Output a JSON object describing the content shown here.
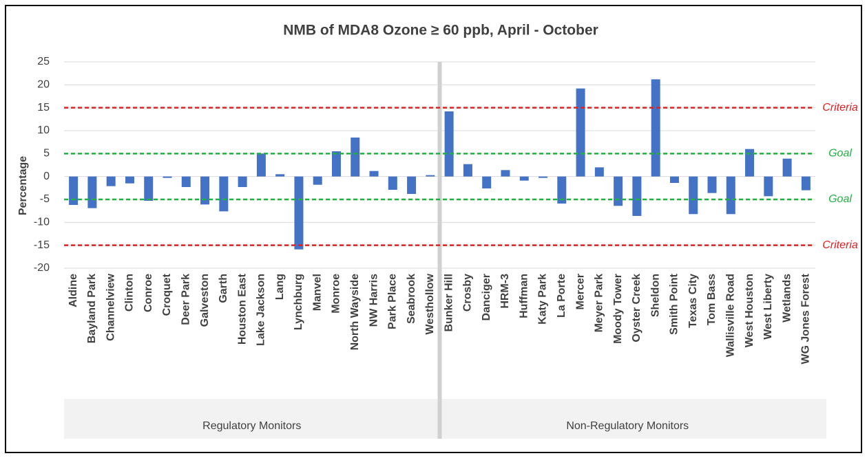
{
  "chart_data": {
    "type": "bar",
    "title": "NMB of MDA8 Ozone ≥ 60 ppb, April - October",
    "y_label": "Percentage",
    "color": "#4472c4",
    "ylim": [
      -20,
      25
    ],
    "yticks": [
      -20,
      -15,
      -10,
      -5,
      0,
      5,
      10,
      15,
      20,
      25
    ],
    "grid": true,
    "groups": [
      {
        "label": "Regulatory Monitors",
        "categories": [
          "Aldine",
          "Bayland Park",
          "Channelview",
          "Clinton",
          "Conroe",
          "Croquet",
          "Deer Park",
          "Galveston",
          "Garth",
          "Houston East",
          "Lake Jackson",
          "Lang",
          "Lynchburg",
          "Manvel",
          "Monroe",
          "North Wayside",
          "NW Harris",
          "Park Place",
          "Seabrook",
          "Westhollow"
        ],
        "values": [
          -6.2,
          -6.9,
          -2.1,
          -1.5,
          -5.3,
          -0.3,
          -2.3,
          -6.1,
          -7.6,
          -2.3,
          5.0,
          0.5,
          -15.9,
          -1.8,
          5.5,
          8.5,
          1.2,
          -2.9,
          -3.8,
          0.3
        ]
      },
      {
        "label": "Non-Regulatory Monitors",
        "categories": [
          "Bunker Hill",
          "Crosby",
          "Danciger",
          "HRM-3",
          "Huffman",
          "Katy Park",
          "La Porte",
          "Mercer",
          "Meyer Park",
          "Moody Tower",
          "Oyster Creek",
          "Sheldon",
          "Smith Point",
          "Texas City",
          "Tom Bass",
          "Wallisville Road",
          "West Houston",
          "West Liberty",
          "Wetlands",
          "WG Jones Forest"
        ],
        "values": [
          14.2,
          2.7,
          -2.6,
          1.4,
          -0.9,
          -0.3,
          -5.9,
          19.2,
          2.0,
          -6.4,
          -8.6,
          21.2,
          -1.4,
          -8.2,
          -3.6,
          -8.2,
          6.0,
          -4.3,
          3.9,
          -3.0
        ]
      }
    ],
    "reference_lines": [
      {
        "value": 15,
        "label": "Criteria",
        "color": "#e02020"
      },
      {
        "value": 5,
        "label": "Goal",
        "color": "#20b040"
      },
      {
        "value": -5,
        "label": "Goal",
        "color": "#20b040"
      },
      {
        "value": -15,
        "label": "Criteria",
        "color": "#e02020"
      }
    ]
  }
}
